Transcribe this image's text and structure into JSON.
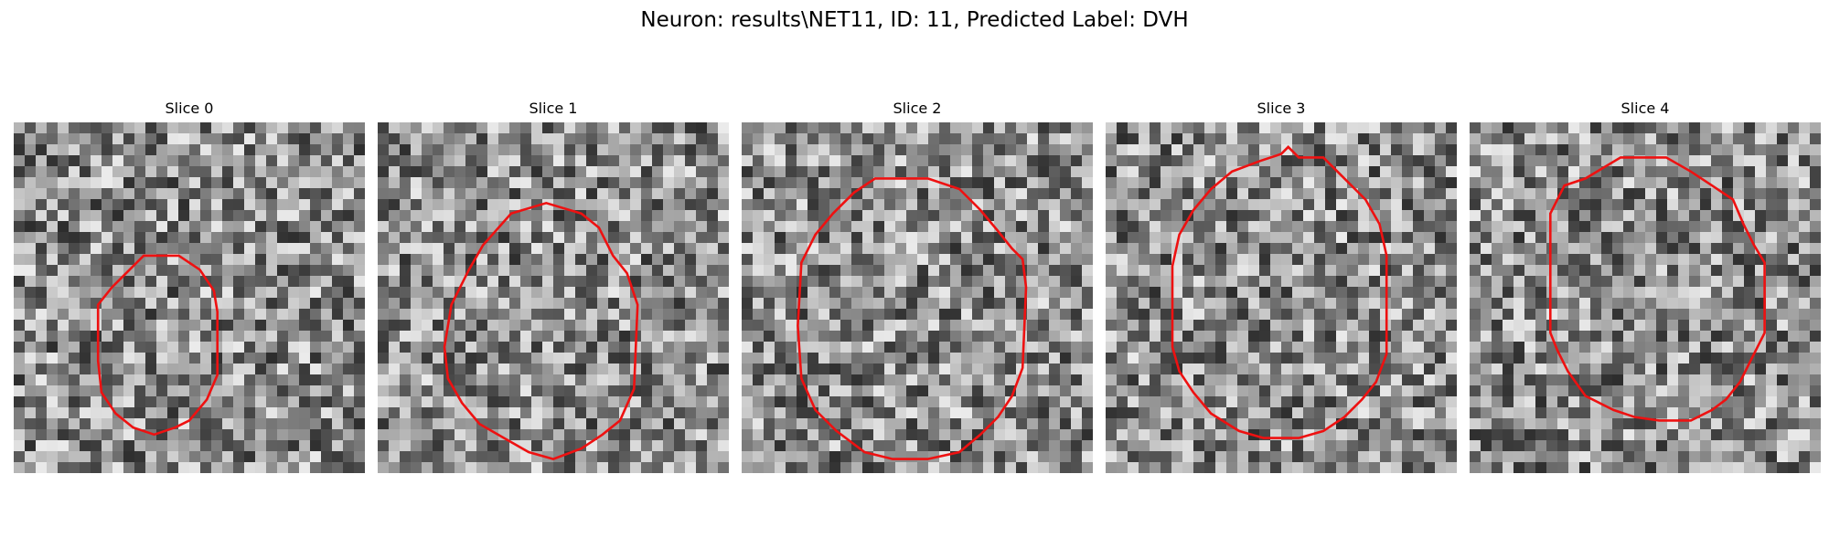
{
  "figure": {
    "title": "Neuron: results\\NET11, ID: 11, Predicted Label: DVH"
  },
  "panels": [
    {
      "title": "Slice 0",
      "contour_color": "#ee1111",
      "contour": [
        [
          0.37,
          0.38
        ],
        [
          0.47,
          0.38
        ],
        [
          0.53,
          0.42
        ],
        [
          0.57,
          0.48
        ],
        [
          0.58,
          0.54
        ],
        [
          0.58,
          0.72
        ],
        [
          0.55,
          0.79
        ],
        [
          0.5,
          0.85
        ],
        [
          0.46,
          0.87
        ],
        [
          0.4,
          0.89
        ],
        [
          0.34,
          0.87
        ],
        [
          0.29,
          0.83
        ],
        [
          0.25,
          0.77
        ],
        [
          0.24,
          0.68
        ],
        [
          0.24,
          0.52
        ],
        [
          0.28,
          0.47
        ]
      ]
    },
    {
      "title": "Slice 1",
      "contour_color": "#ee1111",
      "contour": [
        [
          0.38,
          0.26
        ],
        [
          0.48,
          0.23
        ],
        [
          0.58,
          0.26
        ],
        [
          0.63,
          0.3
        ],
        [
          0.67,
          0.38
        ],
        [
          0.71,
          0.43
        ],
        [
          0.74,
          0.52
        ],
        [
          0.73,
          0.76
        ],
        [
          0.69,
          0.85
        ],
        [
          0.64,
          0.89
        ],
        [
          0.58,
          0.93
        ],
        [
          0.5,
          0.96
        ],
        [
          0.43,
          0.94
        ],
        [
          0.36,
          0.9
        ],
        [
          0.29,
          0.86
        ],
        [
          0.24,
          0.8
        ],
        [
          0.2,
          0.73
        ],
        [
          0.19,
          0.64
        ],
        [
          0.21,
          0.52
        ],
        [
          0.26,
          0.42
        ],
        [
          0.3,
          0.35
        ]
      ]
    },
    {
      "title": "Slice 2",
      "contour_color": "#ee1111",
      "contour": [
        [
          0.38,
          0.16
        ],
        [
          0.53,
          0.16
        ],
        [
          0.62,
          0.19
        ],
        [
          0.68,
          0.25
        ],
        [
          0.73,
          0.31
        ],
        [
          0.77,
          0.36
        ],
        [
          0.8,
          0.39
        ],
        [
          0.81,
          0.47
        ],
        [
          0.8,
          0.7
        ],
        [
          0.77,
          0.78
        ],
        [
          0.73,
          0.84
        ],
        [
          0.68,
          0.89
        ],
        [
          0.62,
          0.94
        ],
        [
          0.53,
          0.96
        ],
        [
          0.43,
          0.96
        ],
        [
          0.35,
          0.94
        ],
        [
          0.27,
          0.88
        ],
        [
          0.21,
          0.82
        ],
        [
          0.17,
          0.73
        ],
        [
          0.16,
          0.58
        ],
        [
          0.17,
          0.4
        ],
        [
          0.21,
          0.32
        ],
        [
          0.26,
          0.26
        ],
        [
          0.32,
          0.2
        ]
      ]
    },
    {
      "title": "Slice 3",
      "contour_color": "#ee1111",
      "contour": [
        [
          0.52,
          0.07
        ],
        [
          0.55,
          0.1
        ],
        [
          0.62,
          0.1
        ],
        [
          0.68,
          0.16
        ],
        [
          0.74,
          0.22
        ],
        [
          0.78,
          0.29
        ],
        [
          0.8,
          0.38
        ],
        [
          0.8,
          0.66
        ],
        [
          0.77,
          0.74
        ],
        [
          0.73,
          0.79
        ],
        [
          0.68,
          0.84
        ],
        [
          0.62,
          0.88
        ],
        [
          0.55,
          0.9
        ],
        [
          0.45,
          0.9
        ],
        [
          0.38,
          0.88
        ],
        [
          0.3,
          0.83
        ],
        [
          0.25,
          0.77
        ],
        [
          0.21,
          0.71
        ],
        [
          0.19,
          0.64
        ],
        [
          0.19,
          0.41
        ],
        [
          0.21,
          0.32
        ],
        [
          0.25,
          0.25
        ],
        [
          0.3,
          0.19
        ],
        [
          0.36,
          0.14
        ],
        [
          0.44,
          0.11
        ],
        [
          0.5,
          0.09
        ]
      ]
    },
    {
      "title": "Slice 4",
      "contour_color": "#ee1111",
      "contour": [
        [
          0.43,
          0.1
        ],
        [
          0.56,
          0.1
        ],
        [
          0.63,
          0.14
        ],
        [
          0.69,
          0.18
        ],
        [
          0.75,
          0.22
        ],
        [
          0.78,
          0.29
        ],
        [
          0.81,
          0.35
        ],
        [
          0.84,
          0.4
        ],
        [
          0.84,
          0.6
        ],
        [
          0.8,
          0.68
        ],
        [
          0.77,
          0.74
        ],
        [
          0.73,
          0.79
        ],
        [
          0.69,
          0.82
        ],
        [
          0.63,
          0.85
        ],
        [
          0.54,
          0.85
        ],
        [
          0.47,
          0.84
        ],
        [
          0.41,
          0.82
        ],
        [
          0.33,
          0.78
        ],
        [
          0.28,
          0.71
        ],
        [
          0.25,
          0.65
        ],
        [
          0.23,
          0.6
        ],
        [
          0.23,
          0.26
        ],
        [
          0.27,
          0.18
        ],
        [
          0.33,
          0.16
        ],
        [
          0.38,
          0.13
        ]
      ]
    }
  ]
}
